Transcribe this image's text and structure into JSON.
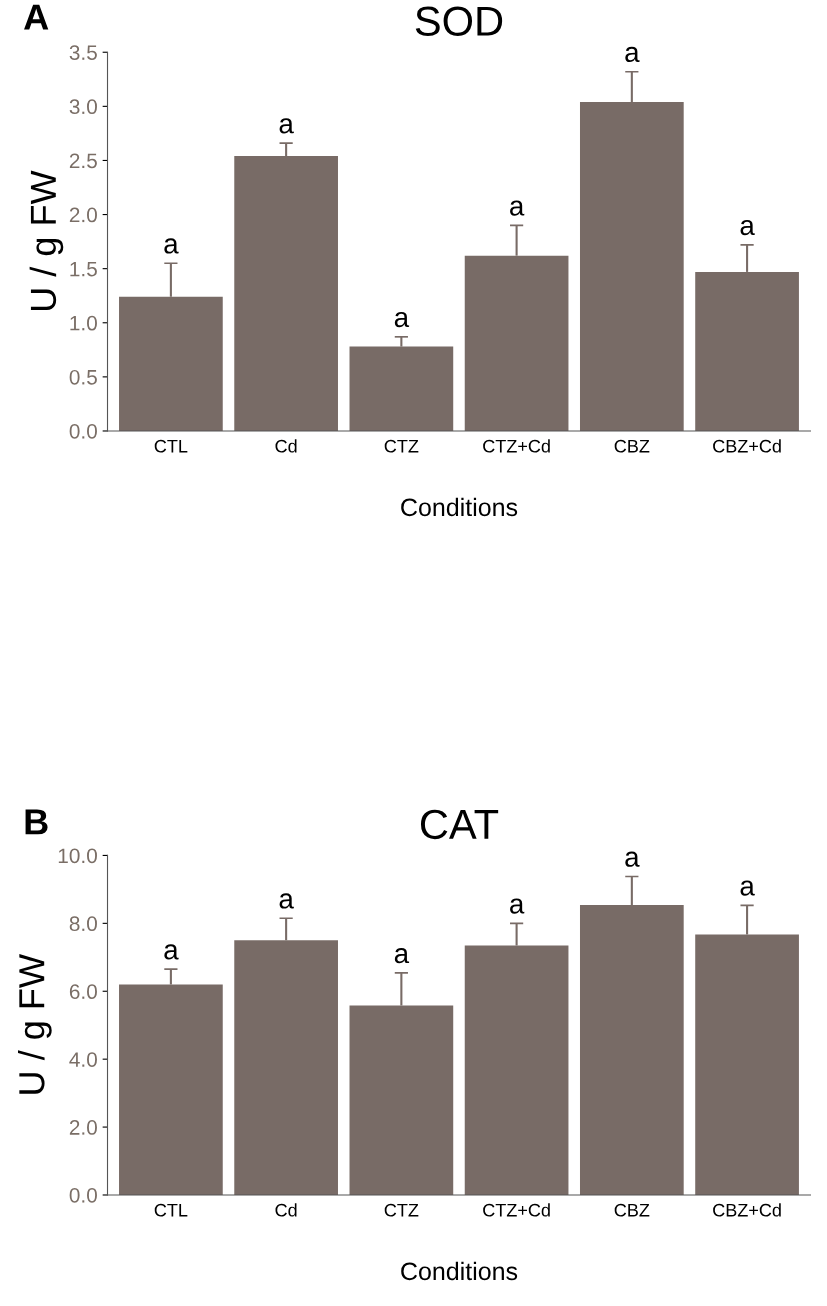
{
  "chart_data": [
    {
      "type": "bar",
      "title": "SOD",
      "xlabel": "Conditions",
      "ylabel": "U / g FW",
      "categories": [
        "CTL",
        "Cd",
        "CTZ",
        "CTZ+Cd",
        "CBZ",
        "CBZ+Cd"
      ],
      "values": [
        1.24,
        2.54,
        0.78,
        1.62,
        3.04,
        1.47
      ],
      "errors": [
        [
          1.24,
          1.55
        ],
        [
          2.54,
          2.66
        ],
        [
          0.78,
          0.87
        ],
        [
          1.62,
          1.9
        ],
        [
          3.04,
          3.32
        ],
        [
          1.47,
          1.72
        ]
      ],
      "color": "#786b66",
      "ylim": [
        0,
        3.5
      ],
      "yticks": [
        {
          "value": 0,
          "label": "0.0"
        },
        {
          "value": 0.5,
          "label": "0.5"
        },
        {
          "value": 1,
          "label": "1.0"
        },
        {
          "value": 1.5,
          "label": "1.5"
        },
        {
          "value": 2,
          "label": "2.0"
        },
        {
          "value": 2.5,
          "label": "2.5"
        },
        {
          "value": 3,
          "label": "3.0"
        },
        {
          "value": 3.5,
          "label": "3.5"
        }
      ],
      "grid": false,
      "legend": false,
      "annotations": [
        "A",
        "a",
        "a",
        "a",
        "a",
        "a",
        "a"
      ]
    },
    {
      "type": "bar",
      "title": "CAT",
      "xlabel": "Conditions",
      "ylabel": "U / g FW",
      "categories": [
        "CTL",
        "Cd",
        "CTZ",
        "CTZ+Cd",
        "CBZ",
        "CBZ+Cd"
      ],
      "values": [
        6.2,
        7.5,
        5.58,
        7.35,
        8.54,
        7.67
      ],
      "errors": [
        [
          6.2,
          6.65
        ],
        [
          7.5,
          8.15
        ],
        [
          5.58,
          6.54
        ],
        [
          7.35,
          8.0
        ],
        [
          8.54,
          9.38
        ],
        [
          7.67,
          8.53
        ]
      ],
      "color": "#786b66",
      "ylim": [
        0,
        10
      ],
      "yticks": [
        {
          "value": 0,
          "label": "0.0"
        },
        {
          "value": 2,
          "label": "2.0"
        },
        {
          "value": 4,
          "label": "4.0"
        },
        {
          "value": 6,
          "label": "6.0"
        },
        {
          "value": 8,
          "label": "8.0"
        },
        {
          "value": 10,
          "label": "10.0"
        }
      ],
      "grid": false,
      "legend": false,
      "annotations": [
        "B",
        "a",
        "a",
        "a",
        "a",
        "a",
        "a"
      ]
    }
  ]
}
